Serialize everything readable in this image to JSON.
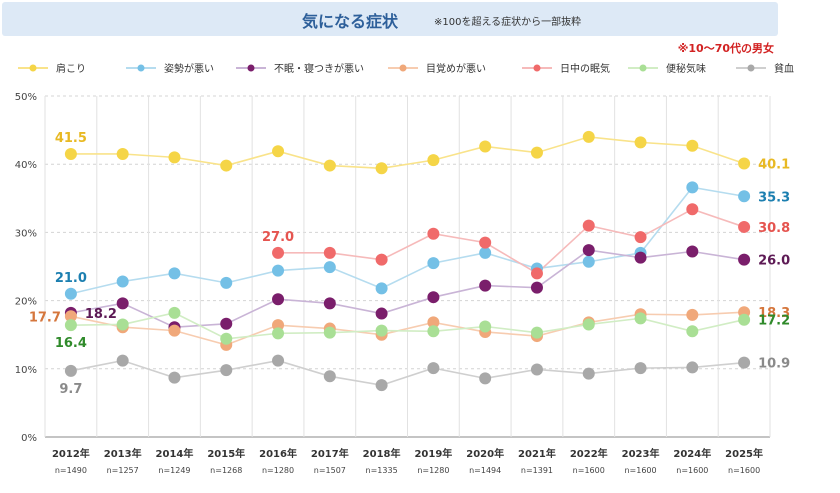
{
  "chart_data": {
    "type": "line",
    "title": "気になる症状",
    "subtitle": "※100を超える症状から一部抜粋",
    "note": "※10～70代の男女",
    "ylim": [
      0,
      50
    ],
    "y_ticks": [
      0,
      10,
      20,
      30,
      40,
      50
    ],
    "y_tick_labels": [
      "0%",
      "10%",
      "20%",
      "30%",
      "40%",
      "50%"
    ],
    "categories": [
      "2012年",
      "2013年",
      "2014年",
      "2015年",
      "2016年",
      "2017年",
      "2018年",
      "2019年",
      "2020年",
      "2021年",
      "2022年",
      "2023年",
      "2024年",
      "2025年"
    ],
    "sample_sizes": [
      "n=1490",
      "n=1257",
      "n=1249",
      "n=1268",
      "n=1280",
      "n=1507",
      "n=1335",
      "n=1280",
      "n=1494",
      "n=1391",
      "n=1600",
      "n=1600",
      "n=1600",
      "n=1600"
    ],
    "legend_position": "top",
    "grid": true,
    "series": [
      {
        "name": "肩こり",
        "color": "#f5d547",
        "line_color": "#f9e38a",
        "values": [
          41.5,
          41.5,
          41.0,
          39.8,
          41.9,
          39.8,
          39.4,
          40.6,
          42.6,
          41.7,
          44.0,
          43.2,
          42.7,
          40.1
        ],
        "labels": [
          {
            "index": 0,
            "text": "41.5",
            "position": "above"
          },
          {
            "index": 13,
            "text": "40.1",
            "position": "right"
          }
        ],
        "label_color": "#e8b923"
      },
      {
        "name": "姿勢が悪い",
        "color": "#74c0e6",
        "line_color": "#b5dcef",
        "values": [
          21.0,
          22.8,
          24.0,
          22.6,
          24.4,
          24.9,
          21.8,
          25.5,
          27.0,
          24.7,
          25.7,
          27.0,
          36.6,
          35.3
        ],
        "labels": [
          {
            "index": 0,
            "text": "21.0",
            "position": "above"
          },
          {
            "index": 13,
            "text": "35.3",
            "position": "right"
          }
        ],
        "label_color": "#1c7fb0"
      },
      {
        "name": "不眠・寝つきが悪い",
        "color": "#7a1e6b",
        "line_color": "#c9b4d6",
        "values": [
          18.2,
          19.6,
          16.1,
          16.6,
          20.2,
          19.6,
          18.1,
          20.5,
          22.2,
          21.9,
          27.4,
          26.3,
          27.2,
          26.0
        ],
        "labels": [
          {
            "index": 0,
            "text": "18.2",
            "position": "right"
          },
          {
            "index": 13,
            "text": "26.0",
            "position": "right"
          }
        ],
        "label_color": "#5d1a55"
      },
      {
        "name": "目覚めが悪い",
        "color": "#f0a87a",
        "line_color": "#f7ccb0",
        "values": [
          17.7,
          16.1,
          15.6,
          13.5,
          16.4,
          15.9,
          15.0,
          16.8,
          15.4,
          14.8,
          16.8,
          18.0,
          17.9,
          18.3
        ],
        "labels": [
          {
            "index": 0,
            "text": "17.7",
            "position": "left"
          },
          {
            "index": 13,
            "text": "18.3",
            "position": "right"
          }
        ],
        "label_color": "#d5763c"
      },
      {
        "name": "日中の眠気",
        "color": "#f06a6a",
        "line_color": "#f6baba",
        "values": [
          null,
          null,
          null,
          null,
          27.0,
          27.0,
          26.0,
          29.8,
          28.5,
          24.0,
          31.0,
          29.3,
          33.4,
          30.8
        ],
        "labels": [
          {
            "index": 4,
            "text": "27.0",
            "position": "above"
          },
          {
            "index": 13,
            "text": "30.8",
            "position": "right"
          }
        ],
        "label_color": "#e5544f"
      },
      {
        "name": "便秘気味",
        "color": "#a9df95",
        "line_color": "#d1edc4",
        "values": [
          16.4,
          16.5,
          18.2,
          14.4,
          15.2,
          15.3,
          15.6,
          15.5,
          16.2,
          15.3,
          16.5,
          17.4,
          15.5,
          17.2
        ],
        "labels": [
          {
            "index": 0,
            "text": "16.4",
            "position": "below"
          },
          {
            "index": 13,
            "text": "17.2",
            "position": "right"
          }
        ],
        "label_color": "#2f8a2a"
      },
      {
        "name": "貧血",
        "color": "#a8a8a8",
        "line_color": "#cfcfcf",
        "values": [
          9.7,
          11.2,
          8.7,
          9.8,
          11.2,
          8.9,
          7.6,
          10.1,
          8.6,
          9.9,
          9.3,
          10.1,
          10.2,
          10.9
        ],
        "labels": [
          {
            "index": 0,
            "text": "9.7",
            "position": "below"
          },
          {
            "index": 13,
            "text": "10.9",
            "position": "right"
          }
        ],
        "label_color": "#8a8a8a"
      }
    ]
  }
}
